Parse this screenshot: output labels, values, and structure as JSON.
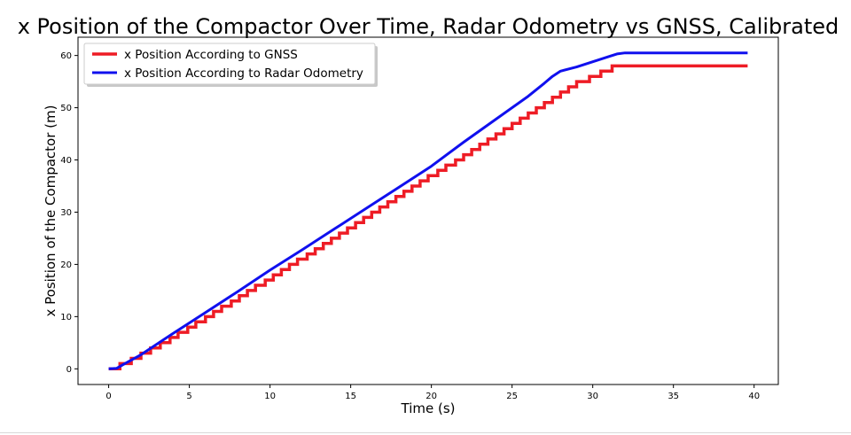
{
  "chart_data": {
    "type": "line",
    "title": "x Position of the Compactor Over Time, Radar Odometry vs GNSS, Calibrated",
    "xlabel": "Time (s)",
    "ylabel": "x Position of the Compactor (m)",
    "xlim": [
      -1.9,
      41.5
    ],
    "ylim": [
      -3,
      63.5
    ],
    "xticks": [
      0,
      5,
      10,
      15,
      20,
      25,
      30,
      35,
      40
    ],
    "yticks": [
      0,
      10,
      20,
      30,
      40,
      50,
      60
    ],
    "grid": false,
    "legend_position": "top-left",
    "series": [
      {
        "name": "x Position According to GNSS",
        "color": "#ee1c25",
        "style": "stepped",
        "steps": [
          [
            0,
            0
          ],
          [
            0.7,
            1
          ],
          [
            1.4,
            2
          ],
          [
            2.0,
            3
          ],
          [
            2.6,
            4
          ],
          [
            3.2,
            5
          ],
          [
            3.8,
            6
          ],
          [
            4.3,
            7
          ],
          [
            4.9,
            8
          ],
          [
            5.4,
            9
          ],
          [
            6.0,
            10
          ],
          [
            6.5,
            11
          ],
          [
            7.0,
            12
          ],
          [
            7.6,
            13
          ],
          [
            8.1,
            14
          ],
          [
            8.6,
            15
          ],
          [
            9.1,
            16
          ],
          [
            9.7,
            17
          ],
          [
            10.2,
            18
          ],
          [
            10.7,
            19
          ],
          [
            11.2,
            20
          ],
          [
            11.7,
            21
          ],
          [
            12.3,
            22
          ],
          [
            12.8,
            23
          ],
          [
            13.3,
            24
          ],
          [
            13.8,
            25
          ],
          [
            14.3,
            26
          ],
          [
            14.8,
            27
          ],
          [
            15.3,
            28
          ],
          [
            15.8,
            29
          ],
          [
            16.3,
            30
          ],
          [
            16.8,
            31
          ],
          [
            17.3,
            32
          ],
          [
            17.8,
            33
          ],
          [
            18.3,
            34
          ],
          [
            18.8,
            35
          ],
          [
            19.3,
            36
          ],
          [
            19.8,
            37
          ],
          [
            20.4,
            38
          ],
          [
            20.9,
            39
          ],
          [
            21.5,
            40
          ],
          [
            22.0,
            41
          ],
          [
            22.5,
            42
          ],
          [
            23.0,
            43
          ],
          [
            23.5,
            44
          ],
          [
            24.0,
            45
          ],
          [
            24.5,
            46
          ],
          [
            25.0,
            47
          ],
          [
            25.5,
            48
          ],
          [
            26.0,
            49
          ],
          [
            26.5,
            50
          ],
          [
            27.0,
            51
          ],
          [
            27.5,
            52
          ],
          [
            28.0,
            53
          ],
          [
            28.5,
            54
          ],
          [
            29.0,
            55
          ],
          [
            29.8,
            56
          ],
          [
            30.5,
            57
          ],
          [
            31.2,
            58
          ]
        ],
        "x_end": 39.6
      },
      {
        "name": "x Position According to Radar Odometry",
        "color": "#1010ee",
        "style": "line",
        "x": [
          0,
          0.5,
          1.0,
          2.0,
          4.0,
          6.0,
          8.0,
          10.0,
          12.0,
          14.0,
          16.0,
          18.0,
          20.0,
          22.0,
          24.0,
          26.0,
          27.0,
          27.5,
          28.0,
          29.0,
          30.0,
          31.0,
          31.5,
          32.0,
          35.0,
          39.6
        ],
        "y": [
          0,
          0.1,
          1.0,
          2.7,
          6.8,
          10.8,
          14.8,
          18.9,
          22.8,
          26.8,
          30.8,
          34.8,
          38.8,
          43.4,
          47.8,
          52.2,
          54.7,
          56.0,
          57.0,
          57.8,
          58.8,
          59.8,
          60.3,
          60.5,
          60.5,
          60.5
        ]
      }
    ]
  }
}
